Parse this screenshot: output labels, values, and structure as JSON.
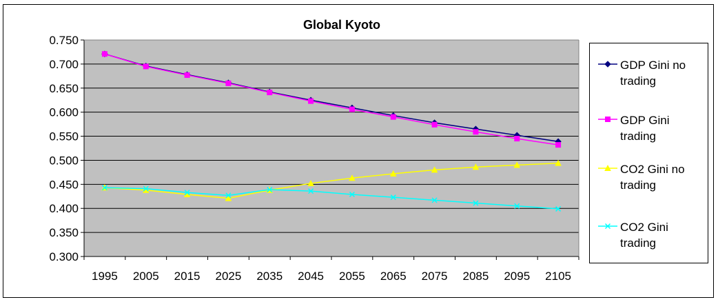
{
  "chart_data": {
    "type": "line",
    "title": "Global Kyoto",
    "xlabel": "",
    "ylabel": "",
    "x": [
      "1995",
      "2005",
      "2015",
      "2025",
      "2035",
      "2045",
      "2055",
      "2065",
      "2075",
      "2085",
      "2095",
      "2105"
    ],
    "ylim": [
      0.3,
      0.75
    ],
    "yticks": [
      "0.300",
      "0.350",
      "0.400",
      "0.450",
      "0.500",
      "0.550",
      "0.600",
      "0.650",
      "0.700",
      "0.750"
    ],
    "grid": "horizontal",
    "plot_background": "#c0c0c0",
    "legend_position": "right",
    "series": [
      {
        "name": "GDP Gini no trading",
        "color": "#000080",
        "marker": "diamond",
        "values": [
          0.721,
          0.696,
          0.678,
          0.661,
          0.642,
          0.625,
          0.609,
          0.593,
          0.578,
          0.565,
          0.552,
          0.539
        ]
      },
      {
        "name": "GDP Gini trading",
        "color": "#ff00ff",
        "marker": "square",
        "values": [
          0.721,
          0.695,
          0.677,
          0.66,
          0.641,
          0.623,
          0.606,
          0.59,
          0.574,
          0.559,
          0.545,
          0.532
        ]
      },
      {
        "name": "CO2 Gini no trading",
        "color": "#ffff00",
        "marker": "triangle",
        "values": [
          0.443,
          0.438,
          0.429,
          0.421,
          0.438,
          0.452,
          0.463,
          0.472,
          0.48,
          0.486,
          0.49,
          0.494
        ]
      },
      {
        "name": "CO2 Gini trading",
        "color": "#00ffff",
        "marker": "x",
        "values": [
          0.443,
          0.441,
          0.433,
          0.427,
          0.439,
          0.436,
          0.429,
          0.423,
          0.417,
          0.411,
          0.405,
          0.399
        ]
      }
    ]
  }
}
